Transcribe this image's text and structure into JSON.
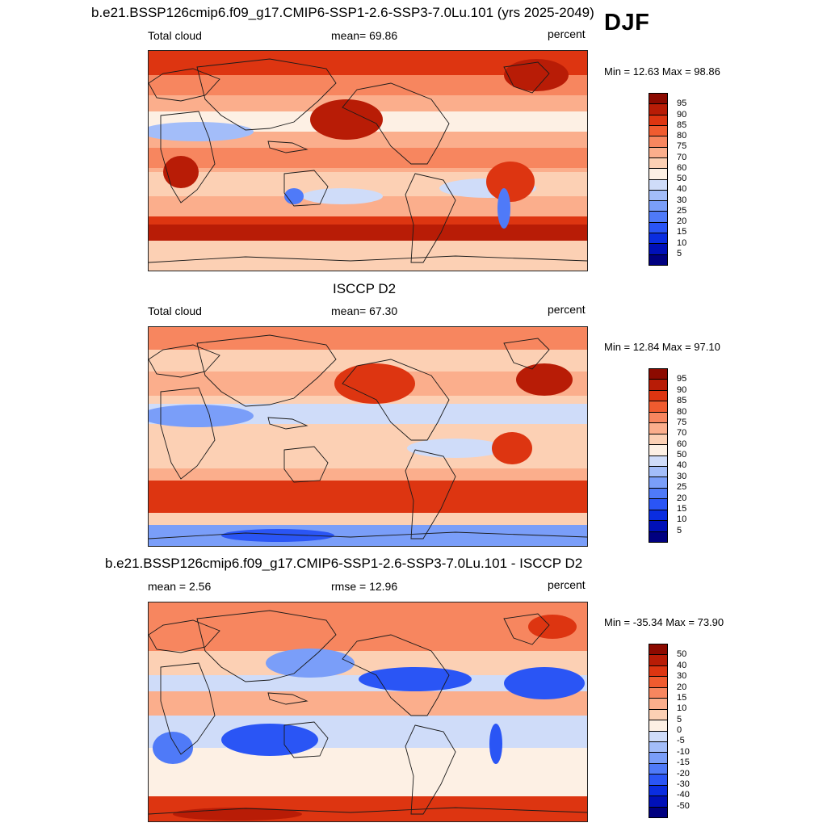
{
  "season": "DJF",
  "panels": [
    {
      "title": "b.e21.BSSP126cmip6.f09_g17.CMIP6-SSP1-2.6-SSP3-7.0Lu.101 (yrs 2025-2049)",
      "left_label": "Total cloud",
      "center_label": "mean=  69.86",
      "right_label": "percent",
      "minmax": "Min =  12.63 Max =  98.86",
      "levels": [
        "5",
        "10",
        "15",
        "20",
        "25",
        "30",
        "40",
        "50",
        "60",
        "70",
        "75",
        "80",
        "85",
        "90",
        "95"
      ],
      "colors": [
        "#000080",
        "#0010b8",
        "#0a2de0",
        "#2a55f5",
        "#4f7af8",
        "#7a9ef9",
        "#a3bdf9",
        "#cfdcf9",
        "#fdf0e4",
        "#fcd0b4",
        "#fbae8c",
        "#f7865f",
        "#f05b2f",
        "#dd3511",
        "#b81c06",
        "#8c0a00"
      ]
    },
    {
      "title": "ISCCP D2",
      "left_label": "Total cloud",
      "center_label": "mean=  67.30",
      "right_label": "percent",
      "minmax": "Min =  12.84 Max =  97.10",
      "levels": [
        "5",
        "10",
        "15",
        "20",
        "25",
        "30",
        "40",
        "50",
        "60",
        "70",
        "75",
        "80",
        "85",
        "90",
        "95"
      ],
      "colors": [
        "#000080",
        "#0010b8",
        "#0a2de0",
        "#2a55f5",
        "#4f7af8",
        "#7a9ef9",
        "#a3bdf9",
        "#cfdcf9",
        "#fdf0e4",
        "#fcd0b4",
        "#fbae8c",
        "#f7865f",
        "#f05b2f",
        "#dd3511",
        "#b81c06",
        "#8c0a00"
      ]
    },
    {
      "title": "b.e21.BSSP126cmip6.f09_g17.CMIP6-SSP1-2.6-SSP3-7.0Lu.101 - ISCCP D2",
      "left_label": "mean =   2.56",
      "center_label": "rmse =  12.96",
      "right_label": "percent",
      "minmax": "Min = -35.34 Max =  73.90",
      "levels": [
        "-50",
        "-40",
        "-30",
        "-20",
        "-15",
        "-10",
        "-5",
        "0",
        "5",
        "10",
        "15",
        "20",
        "30",
        "40",
        "50"
      ],
      "colors": [
        "#000080",
        "#0010b8",
        "#0a2de0",
        "#2a55f5",
        "#4f7af8",
        "#7a9ef9",
        "#a3bdf9",
        "#cfdcf9",
        "#fdf0e4",
        "#fcd0b4",
        "#fbae8c",
        "#f7865f",
        "#f05b2f",
        "#dd3511",
        "#b81c06",
        "#8c0a00"
      ]
    }
  ]
}
